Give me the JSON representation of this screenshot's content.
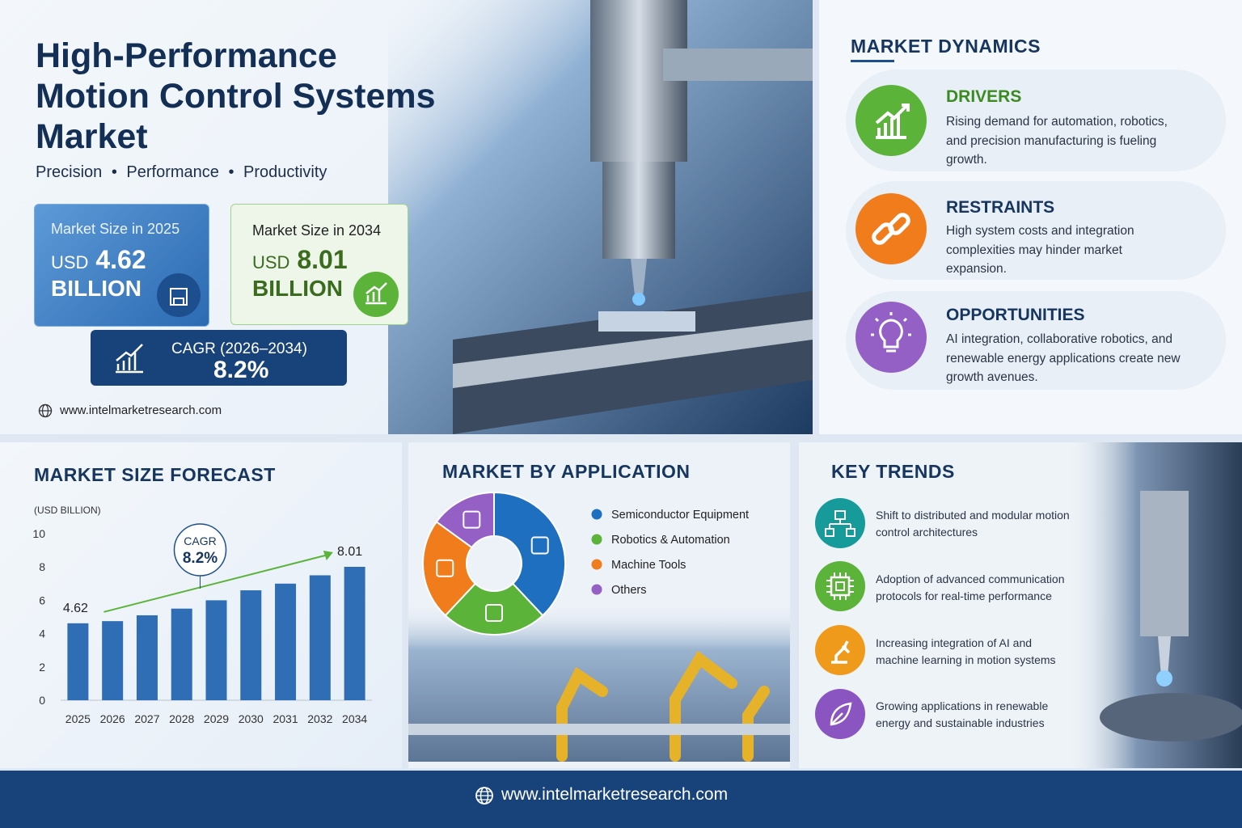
{
  "header": {
    "title_lines": [
      "High-Performance",
      "Motion Control Systems",
      "Market"
    ],
    "tagline": [
      "Precision",
      "Performance",
      "Productivity"
    ],
    "website": "www.intelmarketresearch.com"
  },
  "stats": [
    {
      "label": "Market Size in 2025",
      "currency": "USD",
      "value": "4.62",
      "unit": "BILLION"
    },
    {
      "label": "Market Size in 2034",
      "currency": "USD",
      "value": "8.01",
      "unit": "BILLION"
    }
  ],
  "cagr": {
    "label": "CAGR (2026–2034)",
    "value": "8.2%"
  },
  "dynamics": {
    "title": "MARKET DYNAMICS",
    "items": [
      {
        "title": "DRIVERS",
        "text": "Rising demand for automation, robotics, and precision manufacturing is fueling growth."
      },
      {
        "title": "RESTRAINTS",
        "text": "High system costs and integration complexities may hinder market expansion."
      },
      {
        "title": "OPPORTUNITIES",
        "text": "AI integration, collaborative robotics, and renewable energy applications create new growth avenues."
      }
    ]
  },
  "chart_data": [
    {
      "type": "bar",
      "title": "MARKET SIZE FORECAST",
      "y_label": "(USD BILLION)",
      "categories": [
        "2025",
        "2026",
        "2027",
        "2028",
        "2029",
        "2030",
        "2031",
        "2032",
        "2034"
      ],
      "values": [
        4.62,
        4.75,
        5.1,
        5.5,
        6.0,
        6.6,
        7.0,
        7.5,
        8.01
      ],
      "color": "#2f6db5",
      "ylim": [
        0,
        10
      ],
      "yticks": [
        0,
        2,
        4,
        6,
        8,
        10
      ],
      "grid": false,
      "annotation": {
        "label": "CAGR",
        "value": "8.2%"
      }
    },
    {
      "type": "pie",
      "title": "MARKET BY APPLICATION",
      "categories": [
        "Semiconductor Equipment",
        "Robotics & Automation",
        "Machine Tools",
        "Others"
      ],
      "values": [
        38,
        24,
        23,
        15
      ],
      "colors": [
        "#1f6fc1",
        "#5bb33a",
        "#f07c1b",
        "#9560c6"
      ],
      "donut": true
    }
  ],
  "trends": {
    "title": "KEY TRENDS",
    "items": [
      "Shift to distributed and modular motion control architectures",
      "Adoption of advanced communication protocols for real-time performance",
      "Increasing integration of AI and machine learning in motion systems",
      "Growing applications in renewable energy and sustainable industries"
    ]
  },
  "footer": {
    "website": "www.intelmarketresearch.com"
  }
}
